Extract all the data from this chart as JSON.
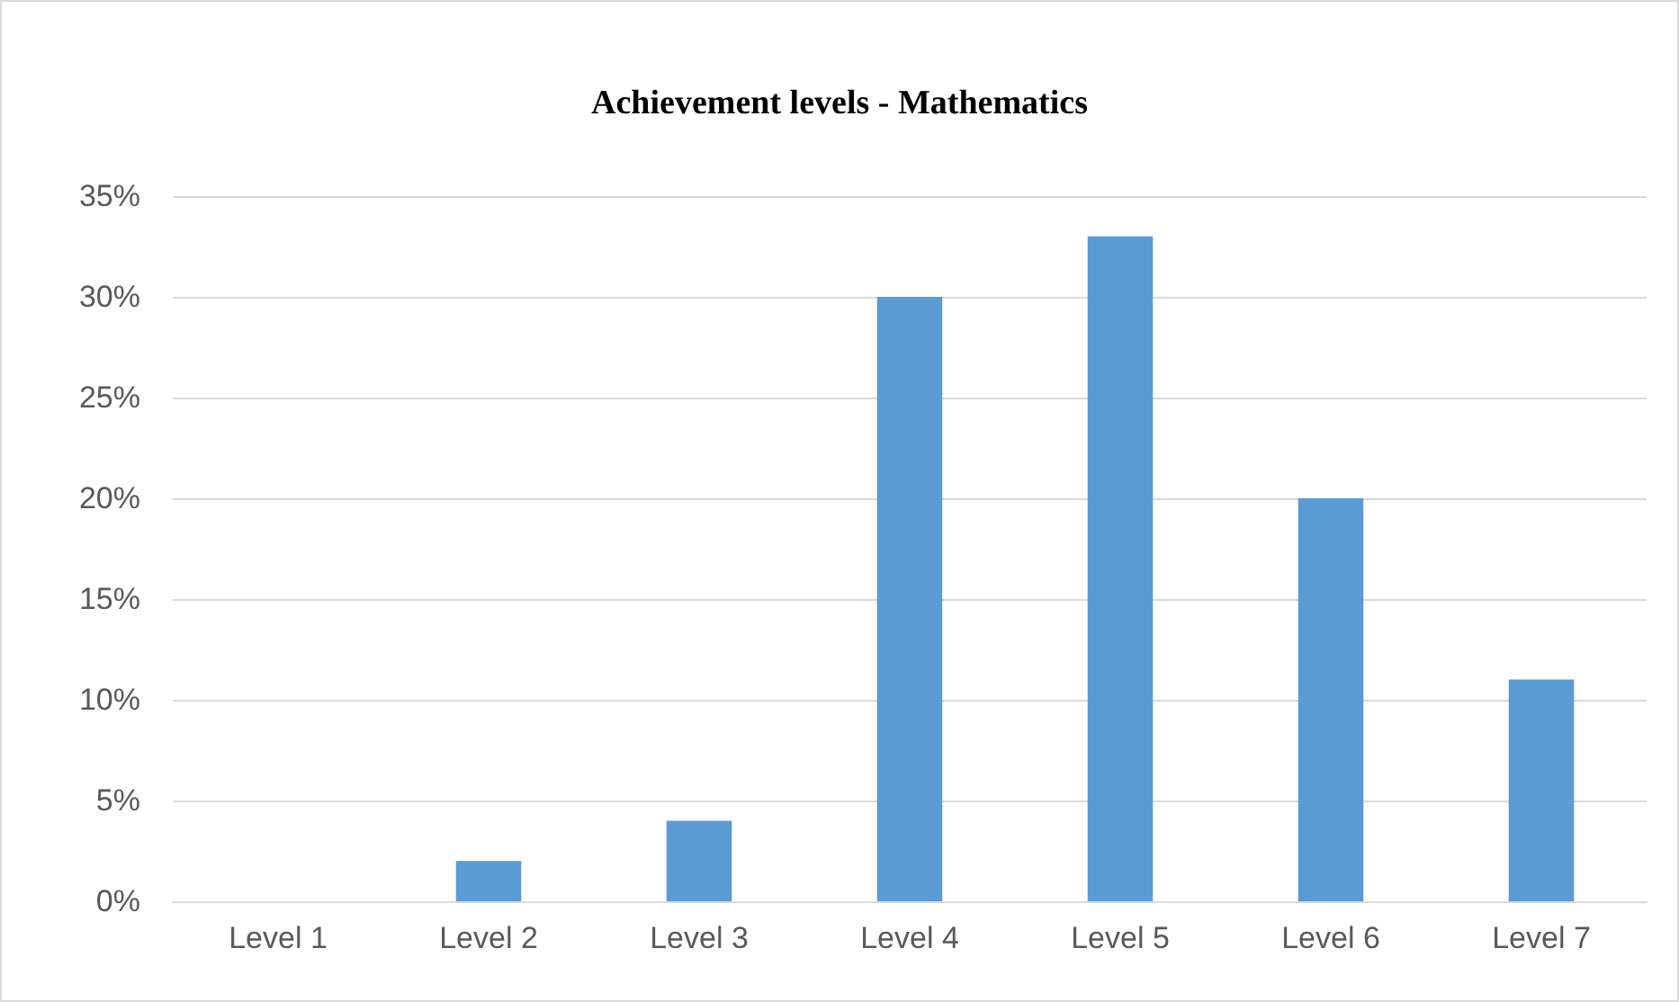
{
  "chart_data": {
    "type": "bar",
    "title": "Achievement levels - Mathematics",
    "categories": [
      "Level 1",
      "Level 2",
      "Level 3",
      "Level 4",
      "Level 5",
      "Level 6",
      "Level 7"
    ],
    "values": [
      0,
      2,
      4,
      30,
      33,
      20,
      11
    ],
    "color": "#5b9bd5",
    "ylim": [
      0,
      35
    ],
    "yticks": [
      {
        "value": 0,
        "label": "0%"
      },
      {
        "value": 5,
        "label": "5%"
      },
      {
        "value": 10,
        "label": "10%"
      },
      {
        "value": 15,
        "label": "15%"
      },
      {
        "value": 20,
        "label": "20%"
      },
      {
        "value": 25,
        "label": "25%"
      },
      {
        "value": 30,
        "label": "30%"
      },
      {
        "value": 35,
        "label": "35%"
      }
    ],
    "grid": "y"
  }
}
